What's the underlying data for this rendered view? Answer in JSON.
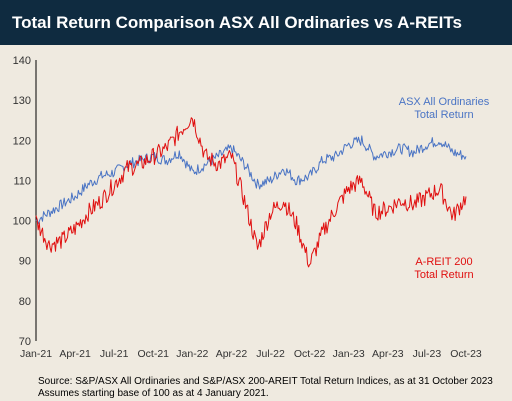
{
  "title": "Total Return Comparison ASX All Ordinaries vs A-REITs",
  "source_lines": [
    "Source: S&P/ASX All Ordinaries and S&P/ASX 200-AREIT Total Return Indices, as at 31 October 2023",
    "Assumes starting base of 100 as at 4 January 2021."
  ],
  "colors": {
    "asx": "#4a74c4",
    "areit": "#e01010",
    "background": "#efeae0",
    "title_bar": "#0f2b40"
  },
  "chart_data": {
    "type": "line",
    "title": "Total Return Comparison ASX All Ordinaries vs A-REITs",
    "xlabel": "",
    "ylabel": "",
    "ylim": [
      70,
      140
    ],
    "yticks": [
      70,
      80,
      90,
      100,
      110,
      120,
      130,
      140
    ],
    "xticks": [
      "Jan-21",
      "Apr-21",
      "Jul-21",
      "Oct-21",
      "Jan-22",
      "Apr-22",
      "Jul-22",
      "Oct-22",
      "Jan-23",
      "Apr-23",
      "Jul-23",
      "Oct-23"
    ],
    "grid": false,
    "x": [
      "Jan-21",
      "Feb-21",
      "Mar-21",
      "Apr-21",
      "May-21",
      "Jun-21",
      "Jul-21",
      "Aug-21",
      "Sep-21",
      "Oct-21",
      "Nov-21",
      "Dec-21",
      "Jan-22",
      "Feb-22",
      "Mar-22",
      "Apr-22",
      "May-22",
      "Jun-22",
      "Jul-22",
      "Aug-22",
      "Sep-22",
      "Oct-22",
      "Nov-22",
      "Dec-22",
      "Jan-23",
      "Feb-23",
      "Mar-23",
      "Apr-23",
      "May-23",
      "Jun-23",
      "Jul-23",
      "Aug-23",
      "Sep-23",
      "Oct-23"
    ],
    "series": [
      {
        "name": "ASX All Ordinaries Total Return",
        "label_lines": [
          "ASX All Ordinaries",
          "Total Return"
        ],
        "color": "#4a74c4",
        "values": [
          100,
          102,
          104,
          106,
          109,
          111,
          112,
          114,
          115,
          116,
          115,
          117,
          112,
          114,
          116,
          118,
          114,
          109,
          110,
          113,
          110,
          111,
          115,
          116,
          119,
          120,
          116,
          117,
          118,
          117,
          119,
          120,
          117,
          116
        ]
      },
      {
        "name": "A-REIT 200 Total Return",
        "label_lines": [
          "A-REIT 200",
          "Total Return"
        ],
        "color": "#e01010",
        "values": [
          100,
          94,
          95,
          98,
          102,
          105,
          109,
          113,
          114,
          116,
          118,
          122,
          126,
          116,
          114,
          116,
          105,
          93,
          102,
          105,
          99,
          89,
          97,
          103,
          108,
          110,
          102,
          103,
          105,
          104,
          106,
          108,
          101,
          106
        ]
      }
    ]
  }
}
